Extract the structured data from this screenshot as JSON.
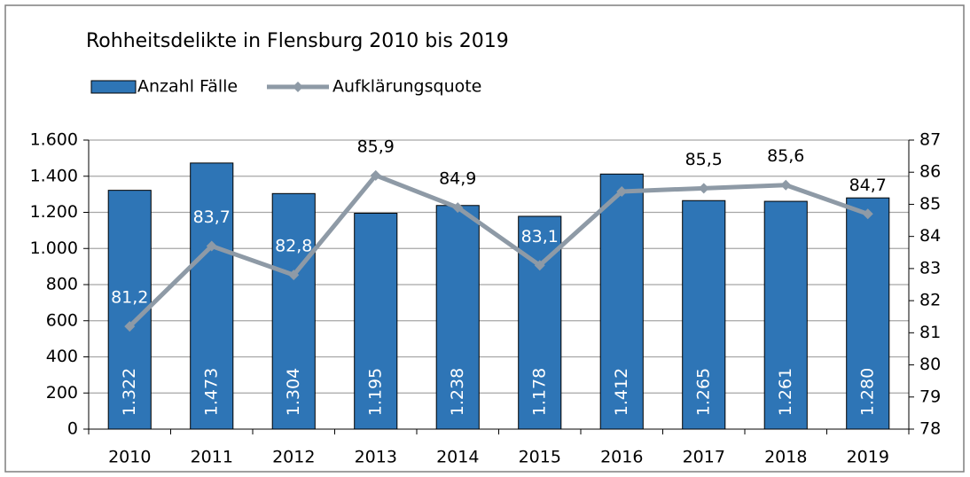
{
  "chart_data": {
    "type": "bar",
    "title": "Rohheitsdelikte  in Flensburg 2010 bis 2019",
    "categories": [
      "2010",
      "2011",
      "2012",
      "2013",
      "2014",
      "2015",
      "2016",
      "2017",
      "2018",
      "2019"
    ],
    "series": [
      {
        "name": "Anzahl Fälle",
        "type": "bar",
        "color": "#2e75b6",
        "values": [
          1322,
          1473,
          1304,
          1195,
          1238,
          1178,
          1412,
          1265,
          1261,
          1280
        ],
        "value_labels": [
          "1.322",
          "1.473",
          "1.304",
          "1.195",
          "1.238",
          "1.178",
          "1.412",
          "1.265",
          "1.261",
          "1.280"
        ]
      },
      {
        "name": "Aufklärungsquote",
        "type": "line",
        "axis": "y2",
        "color": "#8e9aa6",
        "values": [
          81.2,
          83.7,
          82.8,
          85.9,
          84.9,
          83.1,
          85.4,
          85.5,
          85.6,
          84.7
        ],
        "value_labels": [
          "81,2",
          "83,7",
          "82,8",
          "85,9",
          "84,9",
          "83,1",
          null,
          "85,5",
          "85,6",
          "84,7"
        ]
      }
    ],
    "ylim": [
      0,
      1600
    ],
    "yticks": [
      0,
      200,
      400,
      600,
      800,
      {
        "value": 1000,
        "label": "1.000"
      },
      {
        "value": 1200,
        "label": "1.200"
      },
      {
        "value": 1400,
        "label": "1.400"
      },
      {
        "value": 1600,
        "label": "1.600"
      }
    ],
    "y2lim": [
      78,
      87
    ],
    "y2ticks": [
      78,
      79,
      80,
      81,
      82,
      83,
      84,
      85,
      86,
      87
    ],
    "grid": true,
    "legend": "top-left"
  }
}
